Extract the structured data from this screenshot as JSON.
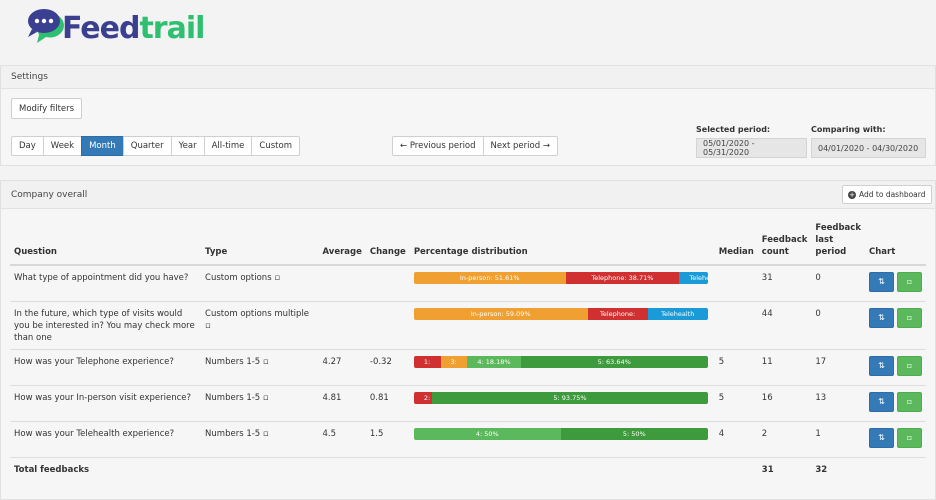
{
  "brand": {
    "part1": "Feed",
    "part2": "trail"
  },
  "settings": {
    "title": "Settings",
    "modify_filters": "Modify filters",
    "ranges": [
      "Day",
      "Week",
      "Month",
      "Quarter",
      "Year",
      "All-time",
      "Custom"
    ],
    "active_range": "Month",
    "prev_period": "← Previous period",
    "next_period": "Next period →",
    "selected_period_label": "Selected period:",
    "selected_period_value": "05/01/2020 - 05/31/2020",
    "comparing_label": "Comparing with:",
    "comparing_value": "04/01/2020 - 04/30/2020"
  },
  "company": {
    "title": "Company overall",
    "add_dashboard": "Add to dashboard",
    "columns": {
      "question": "Question",
      "type": "Type",
      "average": "Average",
      "change": "Change",
      "distribution": "Percentage distribution",
      "median": "Median",
      "count": "Feedback count",
      "last": "Feedback last period",
      "chart": "Chart"
    },
    "rows": [
      {
        "question": "What type of appointment did you have?",
        "type": "Custom options ▫",
        "average": "",
        "change": "",
        "median": "",
        "count": "31",
        "last": "0",
        "segments": [
          {
            "label": "In-person: 51.61%",
            "pct": 51.61,
            "color": "#f0a030"
          },
          {
            "label": "Telephone: 38.71%",
            "pct": 38.71,
            "color": "#d03030"
          },
          {
            "label": "Telehealth",
            "pct": 9.68,
            "color": "#1a9ad6"
          }
        ]
      },
      {
        "question": "In the future, which type of visits would you be interested in? You may check more than one",
        "type": "Custom options multiple ▫",
        "average": "",
        "change": "",
        "median": "",
        "count": "44",
        "last": "0",
        "segments": [
          {
            "label": "In-person: 59.09%",
            "pct": 59.09,
            "color": "#f0a030"
          },
          {
            "label": "Telephone:",
            "pct": 20.45,
            "color": "#d03030"
          },
          {
            "label": "Telehealth",
            "pct": 20.46,
            "color": "#1a9ad6"
          }
        ]
      },
      {
        "question": "How was your Telephone experience?",
        "type": "Numbers 1-5 ▫",
        "average": "4.27",
        "change": "-0.32",
        "median": "5",
        "count": "11",
        "last": "17",
        "segments": [
          {
            "label": "1:",
            "pct": 9.09,
            "color": "#d03030"
          },
          {
            "label": "3:",
            "pct": 9.09,
            "color": "#f0a030"
          },
          {
            "label": "4: 18.18%",
            "pct": 18.18,
            "color": "#5cb85c"
          },
          {
            "label": "5: 63.64%",
            "pct": 63.64,
            "color": "#3d9a3d"
          }
        ]
      },
      {
        "question": "How was your In-person visit experience?",
        "type": "Numbers 1-5 ▫",
        "average": "4.81",
        "change": "0.81",
        "median": "5",
        "count": "16",
        "last": "13",
        "segments": [
          {
            "label": "2:",
            "pct": 6.25,
            "color": "#d03030"
          },
          {
            "label": "5: 93.75%",
            "pct": 93.75,
            "color": "#3d9a3d"
          }
        ]
      },
      {
        "question": "How was your Telehealth experience?",
        "type": "Numbers 1-5 ▫",
        "average": "4.5",
        "change": "1.5",
        "median": "4",
        "count": "2",
        "last": "1",
        "segments": [
          {
            "label": "4: 50%",
            "pct": 50,
            "color": "#5cb85c"
          },
          {
            "label": "5: 50%",
            "pct": 50,
            "color": "#3d9a3d"
          }
        ]
      }
    ],
    "total": {
      "label": "Total feedbacks",
      "count": "31",
      "last": "32"
    },
    "chart_icons": {
      "sort": "sort-icon",
      "chart": "chart-icon"
    }
  }
}
